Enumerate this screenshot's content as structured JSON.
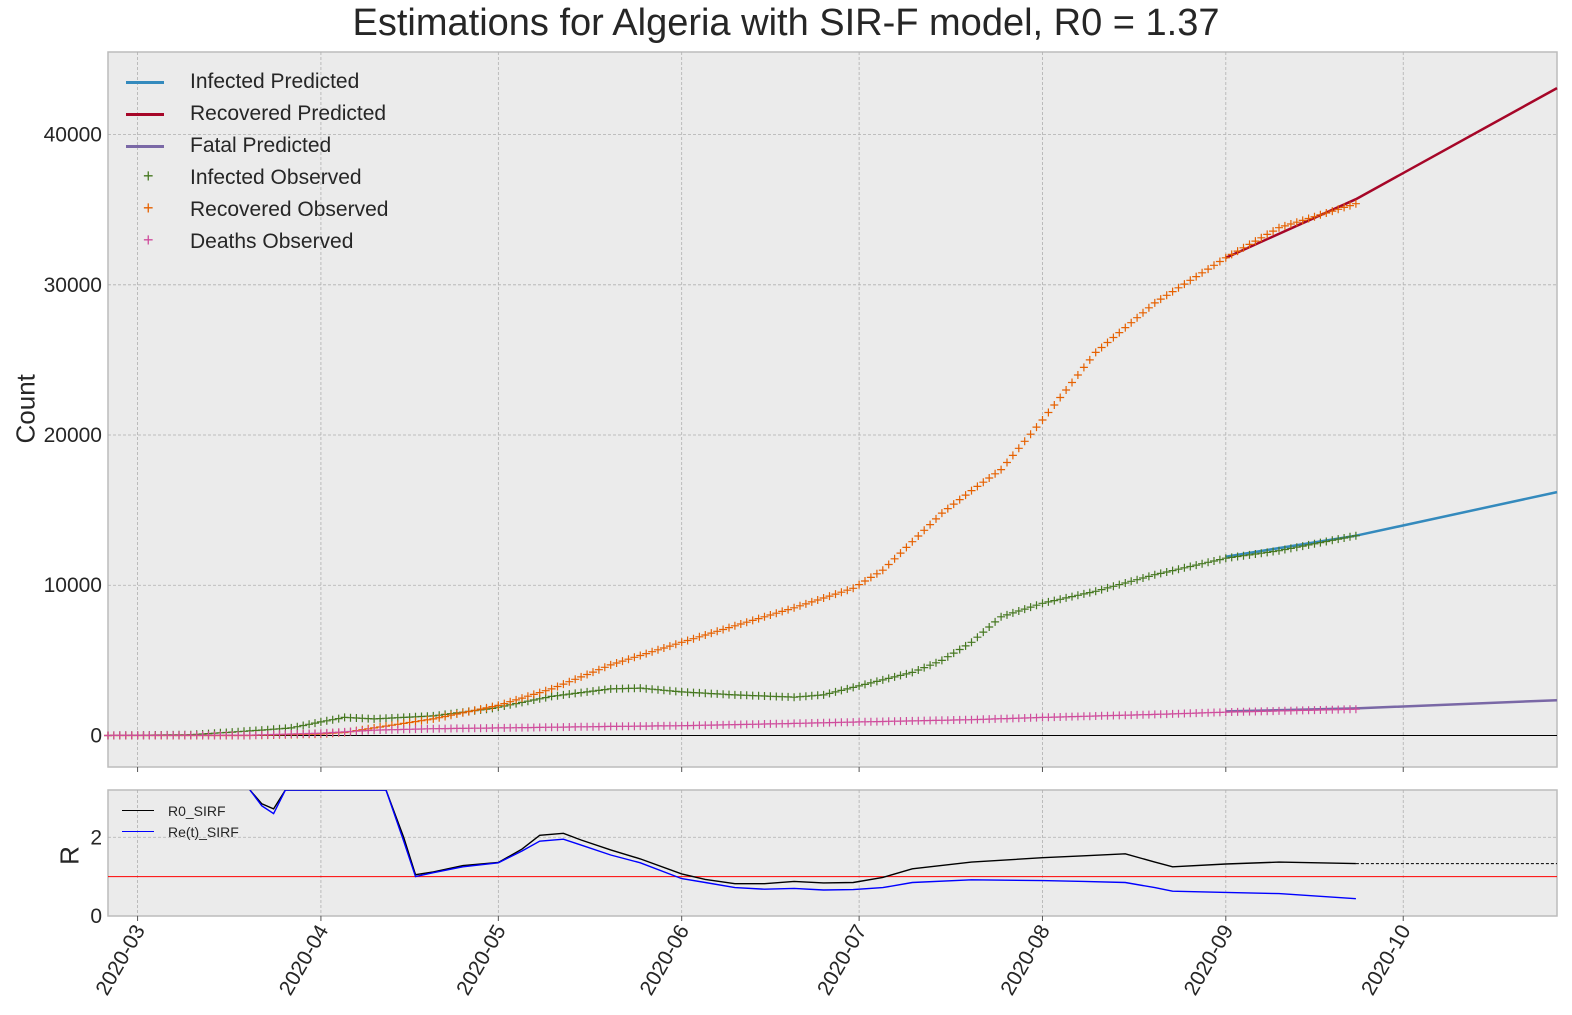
{
  "title": "Estimations for Algeria with SIR-F model, R0 = 1.37",
  "colors": {
    "background": "#ffffff",
    "plot_bg": "#ebebeb",
    "infected_pred": "#348abd",
    "recovered_pred": "#a60628",
    "fatal_pred": "#7a68a6",
    "infected_obs": "#467821",
    "recovered_obs": "#e66101",
    "deaths_obs": "#cf4d9c",
    "r0": "#000000",
    "ret": "#0000ff",
    "threshold": "#ff0000"
  },
  "chart_data": [
    {
      "type": "line",
      "title": "Estimations for Algeria with SIR-F model, R0 = 1.37",
      "ylabel": "Count",
      "xlim": [
        "2020-02-25",
        "2020-10-27"
      ],
      "ylim": [
        -2100,
        45500
      ],
      "yticks": [
        0,
        10000,
        20000,
        30000,
        40000
      ],
      "ytick_labels": [
        "0",
        "10000",
        "20000",
        "30000",
        "40000"
      ],
      "xticks": [
        "2020-03-01",
        "2020-04-01",
        "2020-05-01",
        "2020-06-01",
        "2020-07-01",
        "2020-08-01",
        "2020-09-01",
        "2020-10-01"
      ],
      "xtick_labels": [
        "2020-03",
        "2020-04",
        "2020-05",
        "2020-06",
        "2020-07",
        "2020-08",
        "2020-09",
        "2020-10"
      ],
      "grid": true,
      "legend": "top-left",
      "series": [
        {
          "name": "Infected Predicted",
          "kind": "line",
          "color": "#348abd",
          "x": [
            "2020-09-01",
            "2020-09-23",
            "2020-10-27"
          ],
          "y": [
            11900,
            13300,
            16200
          ]
        },
        {
          "name": "Recovered Predicted",
          "kind": "line",
          "color": "#a60628",
          "x": [
            "2020-09-01",
            "2020-09-23",
            "2020-10-27"
          ],
          "y": [
            31800,
            35700,
            43100
          ]
        },
        {
          "name": "Fatal Predicted",
          "kind": "line",
          "color": "#7a68a6",
          "x": [
            "2020-09-01",
            "2020-09-23",
            "2020-10-27"
          ],
          "y": [
            1600,
            1800,
            2350
          ]
        },
        {
          "name": "Infected Observed",
          "kind": "plus",
          "color": "#467821",
          "x": [
            "2020-02-25",
            "2020-03-10",
            "2020-03-20",
            "2020-03-27",
            "2020-04-01",
            "2020-04-05",
            "2020-04-10",
            "2020-04-20",
            "2020-04-30",
            "2020-05-10",
            "2020-05-20",
            "2020-05-25",
            "2020-06-01",
            "2020-06-10",
            "2020-06-20",
            "2020-06-25",
            "2020-07-01",
            "2020-07-10",
            "2020-07-15",
            "2020-07-20",
            "2020-07-25",
            "2020-08-01",
            "2020-08-10",
            "2020-08-20",
            "2020-09-01",
            "2020-09-10",
            "2020-09-23"
          ],
          "y": [
            0,
            50,
            300,
            500,
            900,
            1200,
            1100,
            1300,
            1800,
            2600,
            3100,
            3150,
            2900,
            2700,
            2550,
            2700,
            3300,
            4200,
            5000,
            6200,
            7900,
            8800,
            9600,
            10700,
            11800,
            12300,
            13300
          ]
        },
        {
          "name": "Recovered Observed",
          "kind": "plus",
          "color": "#e66101",
          "x": [
            "2020-02-25",
            "2020-03-20",
            "2020-04-01",
            "2020-04-05",
            "2020-04-10",
            "2020-04-20",
            "2020-05-01",
            "2020-05-10",
            "2020-05-20",
            "2020-06-01",
            "2020-06-10",
            "2020-06-20",
            "2020-06-30",
            "2020-07-05",
            "2020-07-10",
            "2020-07-15",
            "2020-07-20",
            "2020-07-25",
            "2020-08-01",
            "2020-08-10",
            "2020-08-20",
            "2020-09-01",
            "2020-09-10",
            "2020-09-23"
          ],
          "y": [
            0,
            0,
            100,
            200,
            500,
            1100,
            2000,
            3100,
            4700,
            6200,
            7300,
            8500,
            9800,
            11000,
            12900,
            14800,
            16300,
            17700,
            21000,
            25500,
            28800,
            31800,
            33800,
            35400
          ]
        },
        {
          "name": "Deaths Observed",
          "kind": "plus",
          "color": "#cf4d9c",
          "x": [
            "2020-02-25",
            "2020-03-20",
            "2020-04-01",
            "2020-04-10",
            "2020-04-20",
            "2020-05-01",
            "2020-05-20",
            "2020-06-01",
            "2020-06-20",
            "2020-07-01",
            "2020-07-20",
            "2020-08-01",
            "2020-08-20",
            "2020-09-01",
            "2020-09-23"
          ],
          "y": [
            0,
            20,
            150,
            350,
            450,
            500,
            600,
            650,
            800,
            900,
            1050,
            1200,
            1400,
            1550,
            1750
          ]
        }
      ]
    },
    {
      "type": "line",
      "ylabel": "R",
      "ylim": [
        0,
        3.2
      ],
      "yticks": [
        0,
        2
      ],
      "ytick_labels": [
        "0",
        "2"
      ],
      "threshold": 1,
      "grid": true,
      "legend": "top-left",
      "series": [
        {
          "name": "R0_SIRF",
          "color": "#000000",
          "x": [
            "2020-03-20",
            "2020-03-22",
            "2020-03-24",
            "2020-03-26",
            "2020-04-12",
            "2020-04-15",
            "2020-04-17",
            "2020-04-20",
            "2020-04-25",
            "2020-05-01",
            "2020-05-05",
            "2020-05-08",
            "2020-05-12",
            "2020-05-15",
            "2020-05-20",
            "2020-05-25",
            "2020-06-01",
            "2020-06-05",
            "2020-06-10",
            "2020-06-15",
            "2020-06-20",
            "2020-06-25",
            "2020-06-30",
            "2020-07-05",
            "2020-07-10",
            "2020-07-20",
            "2020-08-01",
            "2020-08-08",
            "2020-08-15",
            "2020-08-20",
            "2020-08-23",
            "2020-09-01",
            "2020-09-10",
            "2020-09-23"
          ],
          "y": [
            3.2,
            2.85,
            2.72,
            3.2,
            3.2,
            2.0,
            1.05,
            1.12,
            1.28,
            1.36,
            1.7,
            2.05,
            2.1,
            1.93,
            1.68,
            1.45,
            1.07,
            0.93,
            0.82,
            0.82,
            0.88,
            0.84,
            0.85,
            0.98,
            1.2,
            1.37,
            1.48,
            1.53,
            1.58,
            1.37,
            1.25,
            1.32,
            1.37,
            1.33
          ],
          "projection": {
            "x": [
              "2020-09-23",
              "2020-10-27"
            ],
            "y": [
              1.33,
              1.33
            ]
          }
        },
        {
          "name": "Re(t)_SIRF",
          "color": "#0000ff",
          "x": [
            "2020-03-20",
            "2020-03-22",
            "2020-03-24",
            "2020-03-26",
            "2020-04-12",
            "2020-04-15",
            "2020-04-17",
            "2020-04-20",
            "2020-04-25",
            "2020-05-01",
            "2020-05-05",
            "2020-05-08",
            "2020-05-12",
            "2020-05-15",
            "2020-05-20",
            "2020-05-25",
            "2020-06-01",
            "2020-06-05",
            "2020-06-10",
            "2020-06-15",
            "2020-06-20",
            "2020-06-25",
            "2020-06-30",
            "2020-07-05",
            "2020-07-10",
            "2020-07-20",
            "2020-08-01",
            "2020-08-08",
            "2020-08-15",
            "2020-08-20",
            "2020-08-23",
            "2020-09-01",
            "2020-09-10",
            "2020-09-23"
          ],
          "y": [
            3.2,
            2.8,
            2.6,
            3.2,
            3.2,
            1.9,
            1.0,
            1.1,
            1.25,
            1.35,
            1.65,
            1.9,
            1.95,
            1.8,
            1.55,
            1.35,
            0.95,
            0.85,
            0.72,
            0.68,
            0.7,
            0.66,
            0.67,
            0.72,
            0.85,
            0.92,
            0.9,
            0.88,
            0.85,
            0.72,
            0.63,
            0.6,
            0.57,
            0.44
          ]
        }
      ],
      "xlim": [
        "2020-02-25",
        "2020-10-27"
      ]
    }
  ]
}
